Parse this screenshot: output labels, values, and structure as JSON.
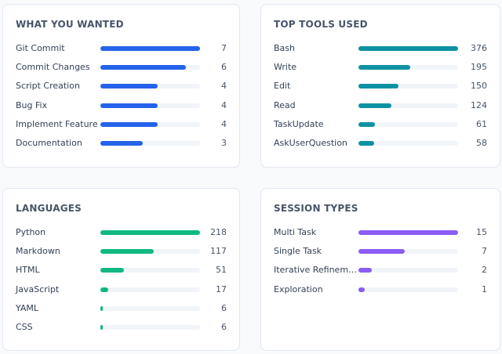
{
  "panels": [
    {
      "title": "WHAT YOU WANTED",
      "color": "#2563eb",
      "items": [
        {
          "label": "Git Commit",
          "value": 7
        },
        {
          "label": "Commit Changes",
          "value": 6
        },
        {
          "label": "Script Creation",
          "value": 4
        },
        {
          "label": "Bug Fix",
          "value": 4
        },
        {
          "label": "Implement Feature",
          "value": 4
        },
        {
          "label": "Documentation",
          "value": 3
        }
      ]
    },
    {
      "title": "TOP TOOLS USED",
      "color": "#0e91a3",
      "items": [
        {
          "label": "Bash",
          "value": 376
        },
        {
          "label": "Write",
          "value": 195
        },
        {
          "label": "Edit",
          "value": 150
        },
        {
          "label": "Read",
          "value": 124
        },
        {
          "label": "TaskUpdate",
          "value": 61
        },
        {
          "label": "AskUserQuestion",
          "value": 58
        }
      ]
    },
    {
      "title": "LANGUAGES",
      "color": "#10b981",
      "items": [
        {
          "label": "Python",
          "value": 218
        },
        {
          "label": "Markdown",
          "value": 117
        },
        {
          "label": "HTML",
          "value": 51
        },
        {
          "label": "JavaScript",
          "value": 17
        },
        {
          "label": "YAML",
          "value": 6
        },
        {
          "label": "CSS",
          "value": 6
        }
      ]
    },
    {
      "title": "SESSION TYPES",
      "color": "#8b5cf6",
      "items": [
        {
          "label": "Multi Task",
          "value": 15
        },
        {
          "label": "Single Task",
          "value": 7
        },
        {
          "label": "Iterative Refinem…",
          "value": 2
        },
        {
          "label": "Exploration",
          "value": 1
        }
      ]
    }
  ]
}
